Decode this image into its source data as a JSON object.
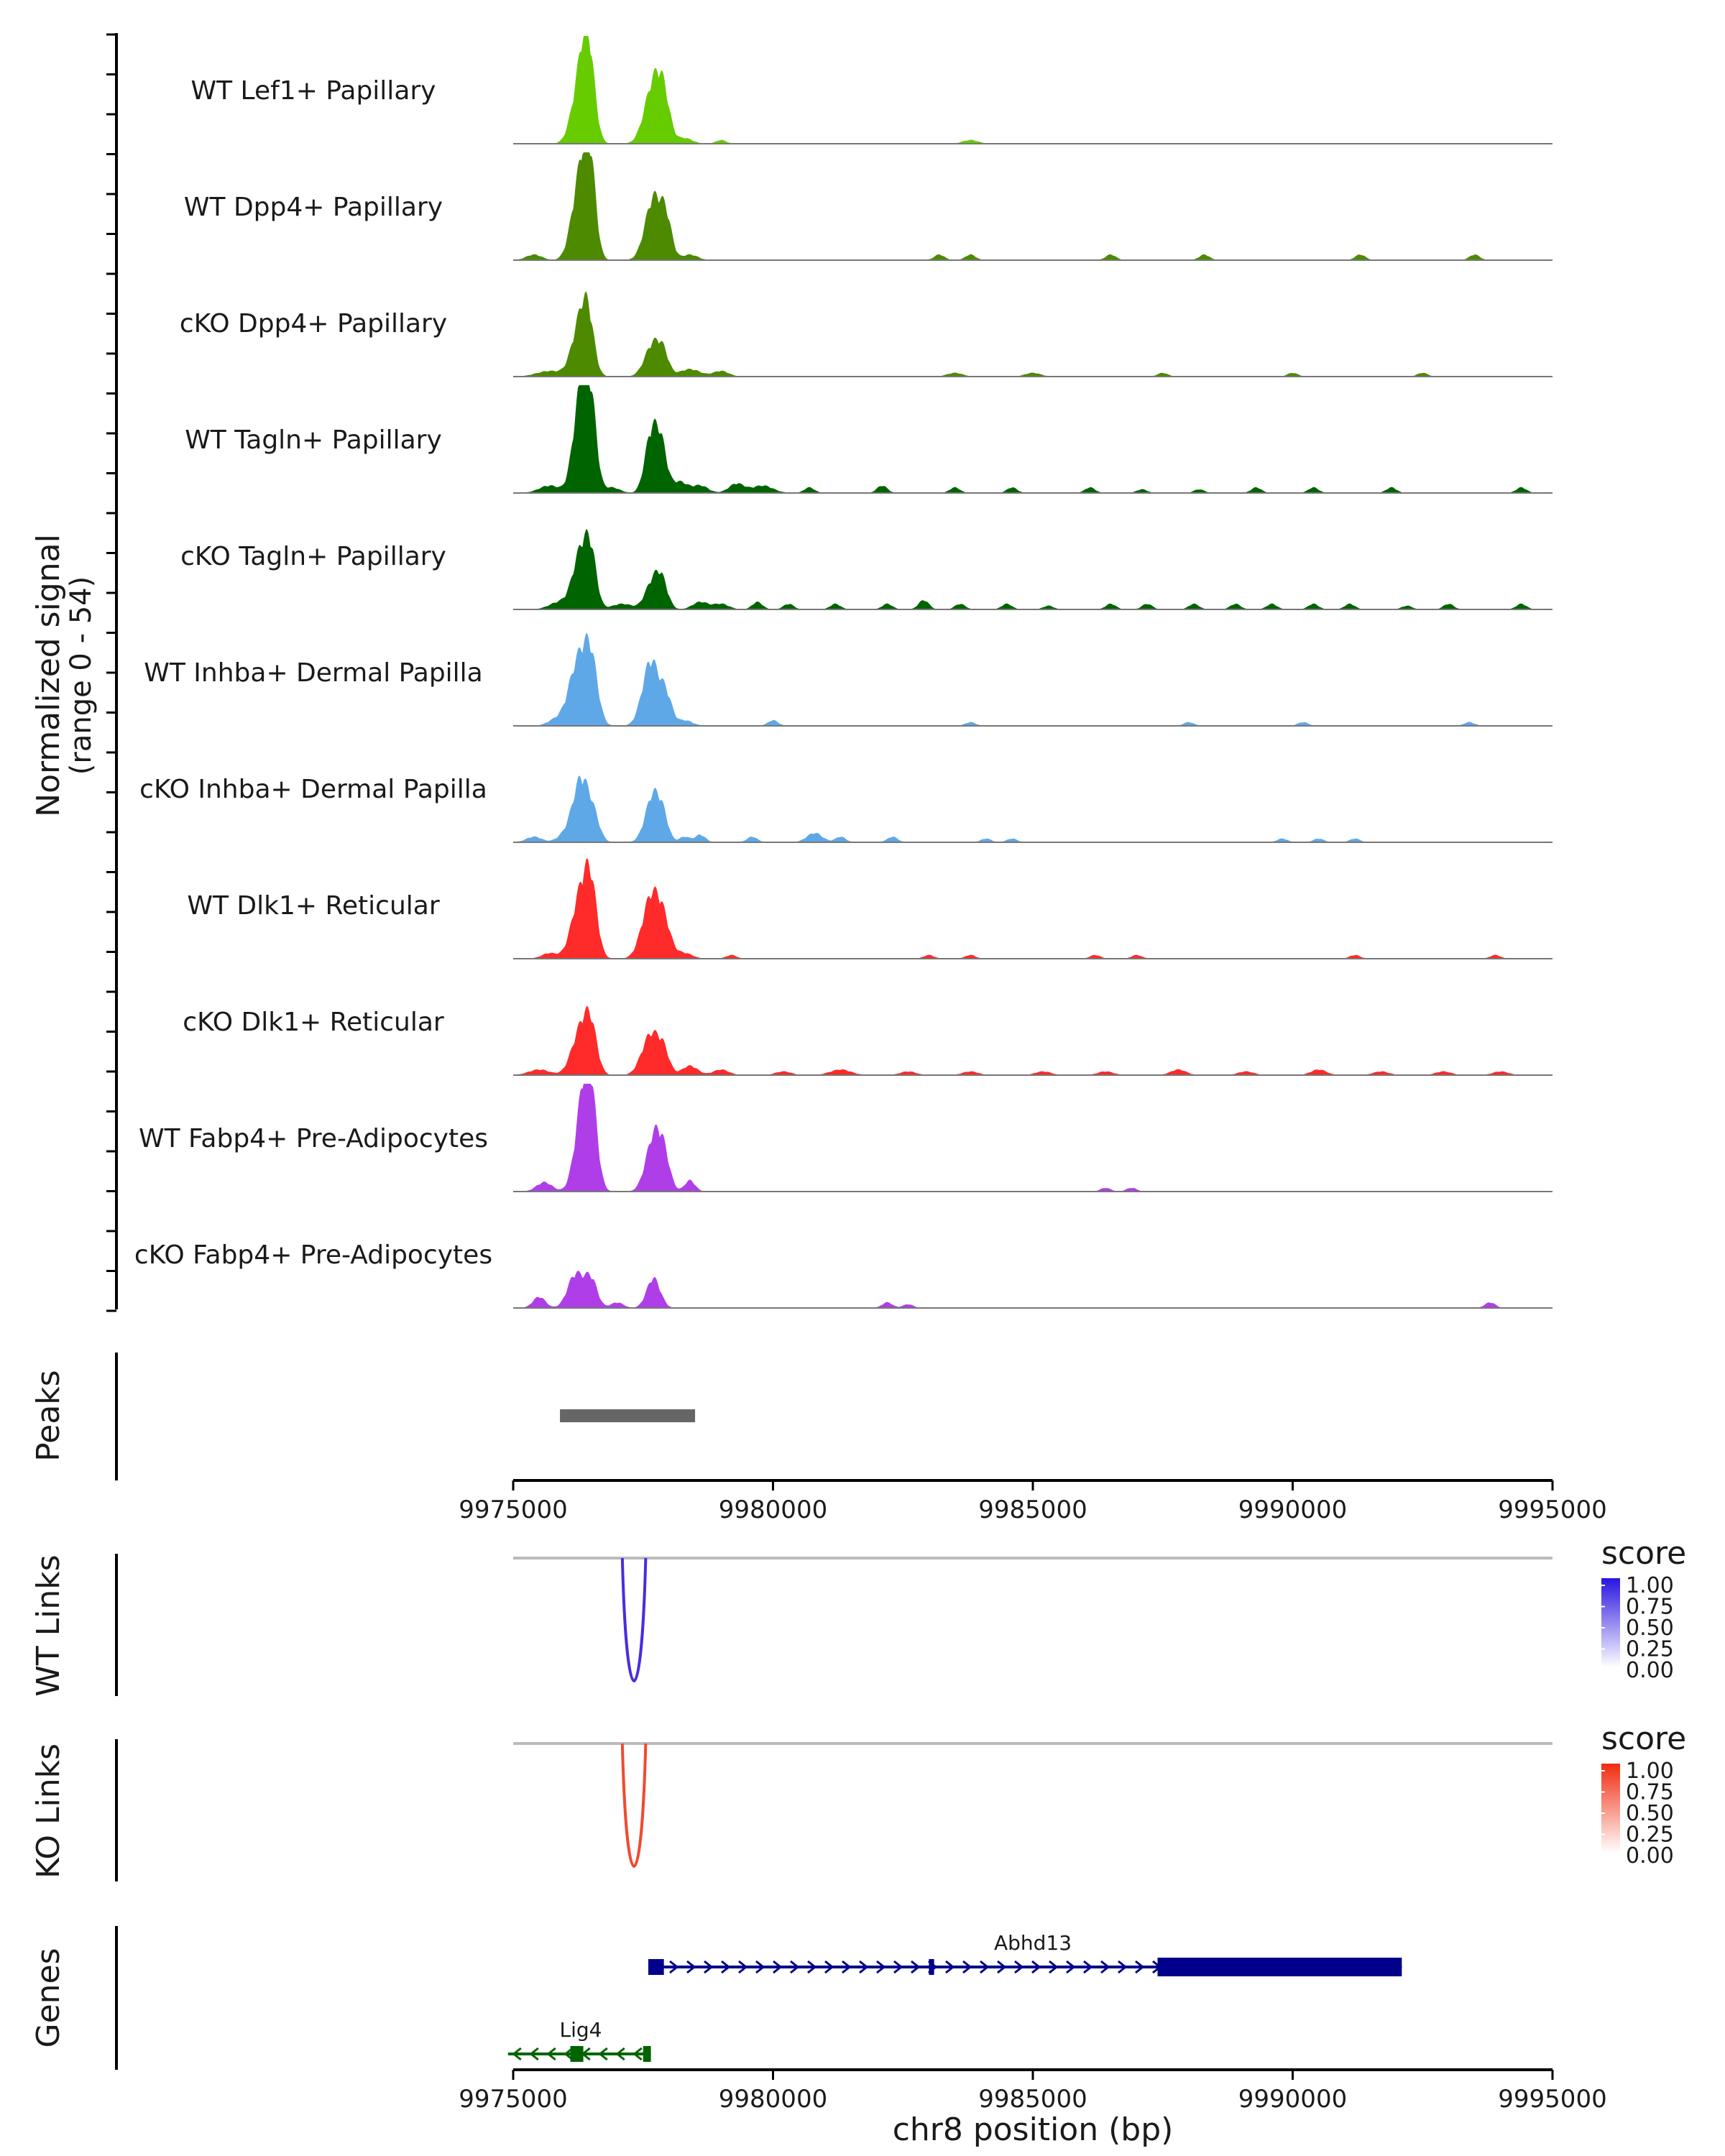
{
  "chart_data": {
    "type": "area",
    "title": "",
    "xlabel": "chr8 position (bp)",
    "xlim": [
      9975000,
      9995000
    ],
    "x_ticks": [
      9975000,
      9980000,
      9985000,
      9990000,
      9995000
    ],
    "x_tick_labels": [
      "9975000",
      "9980000",
      "9985000",
      "9990000",
      "9995000"
    ],
    "coverage": {
      "ylabel": "Normalized signal",
      "ylabel_range": "(range 0 - 54)",
      "ylim": [
        0,
        54
      ],
      "tracks": [
        {
          "name": "WT Lef1+ Papillary",
          "color": "#66cc00",
          "peaks": [
            [
              9976300,
              160,
              35
            ],
            [
              9976450,
              120,
              38
            ],
            [
              9977700,
              170,
              32
            ],
            [
              9977900,
              120,
              18
            ],
            [
              9978300,
              150,
              3
            ],
            [
              9979000,
              100,
              2
            ],
            [
              9983800,
              150,
              2
            ]
          ]
        },
        {
          "name": "WT Dpp4+ Papillary",
          "color": "#4d8a00",
          "peaks": [
            [
              9976300,
              160,
              46
            ],
            [
              9976480,
              110,
              40
            ],
            [
              9977700,
              160,
              33
            ],
            [
              9977950,
              110,
              18
            ],
            [
              9975400,
              150,
              3
            ],
            [
              9978400,
              150,
              3
            ],
            [
              9983200,
              100,
              3
            ],
            [
              9983800,
              100,
              3
            ],
            [
              9986500,
              100,
              3
            ],
            [
              9988300,
              100,
              3
            ],
            [
              9991300,
              100,
              3
            ],
            [
              9993500,
              100,
              3
            ]
          ]
        },
        {
          "name": "cKO Dpp4+ Papillary",
          "color": "#4d8a00",
          "peaks": [
            [
              9976300,
              160,
              30
            ],
            [
              9976450,
              110,
              20
            ],
            [
              9977700,
              160,
              18
            ],
            [
              9977900,
              100,
              8
            ],
            [
              9975700,
              250,
              3
            ],
            [
              9978400,
              200,
              4
            ],
            [
              9979000,
              150,
              3
            ],
            [
              9983500,
              150,
              2
            ],
            [
              9985000,
              150,
              2
            ],
            [
              9987500,
              100,
              2
            ],
            [
              9990000,
              100,
              2
            ],
            [
              9992500,
              100,
              2
            ]
          ]
        },
        {
          "name": "WT Tagln+ Papillary",
          "color": "#006400",
          "peaks": [
            [
              9976300,
              140,
              54
            ],
            [
              9976500,
              110,
              40
            ],
            [
              9977650,
              120,
              30
            ],
            [
              9977850,
              110,
              24
            ],
            [
              9975700,
              200,
              4
            ],
            [
              9976900,
              150,
              3
            ],
            [
              9978200,
              150,
              6
            ],
            [
              9978600,
              150,
              4
            ],
            [
              9979300,
              150,
              5
            ],
            [
              9979800,
              200,
              4
            ],
            [
              9980700,
              100,
              3
            ],
            [
              9982100,
              100,
              4
            ],
            [
              9983500,
              100,
              3
            ],
            [
              9984600,
              100,
              3
            ],
            [
              9986100,
              100,
              3
            ],
            [
              9987100,
              100,
              2
            ],
            [
              9988200,
              100,
              2
            ],
            [
              9989300,
              100,
              3
            ],
            [
              9990400,
              100,
              3
            ],
            [
              9991900,
              100,
              3
            ],
            [
              9994400,
              100,
              3
            ]
          ]
        },
        {
          "name": "cKO Tagln+ Papillary",
          "color": "#006400",
          "peaks": [
            [
              9976300,
              150,
              30
            ],
            [
              9976500,
              110,
              24
            ],
            [
              9977650,
              130,
              12
            ],
            [
              9977850,
              120,
              16
            ],
            [
              9975900,
              200,
              4
            ],
            [
              9977100,
              200,
              3
            ],
            [
              9978600,
              150,
              4
            ],
            [
              9979000,
              150,
              3
            ],
            [
              9979700,
              100,
              4
            ],
            [
              9980300,
              100,
              3
            ],
            [
              9981200,
              100,
              3
            ],
            [
              9982200,
              100,
              3
            ],
            [
              9982900,
              100,
              5
            ],
            [
              9983600,
              100,
              3
            ],
            [
              9984500,
              100,
              3
            ],
            [
              9985300,
              100,
              2
            ],
            [
              9986500,
              100,
              3
            ],
            [
              9987200,
              100,
              3
            ],
            [
              9988100,
              100,
              3
            ],
            [
              9988900,
              100,
              3
            ],
            [
              9989600,
              100,
              3
            ],
            [
              9990400,
              100,
              3
            ],
            [
              9991100,
              100,
              3
            ],
            [
              9992200,
              100,
              2
            ],
            [
              9993000,
              100,
              3
            ],
            [
              9994400,
              100,
              3
            ]
          ]
        },
        {
          "name": "WT Inhba+ Dermal Papilla",
          "color": "#5fa8e8",
          "peaks": [
            [
              9976250,
              180,
              34
            ],
            [
              9976500,
              130,
              30
            ],
            [
              9977650,
              160,
              35
            ],
            [
              9977950,
              110,
              14
            ],
            [
              9975800,
              150,
              3
            ],
            [
              9978300,
              150,
              3
            ],
            [
              9980000,
              100,
              3
            ],
            [
              9983800,
              100,
              2
            ],
            [
              9988000,
              100,
              2
            ],
            [
              9990200,
              100,
              2
            ],
            [
              9993400,
              100,
              2
            ]
          ]
        },
        {
          "name": "cKO Inhba+ Dermal Papilla",
          "color": "#5fa8e8",
          "peaks": [
            [
              9976300,
              150,
              33
            ],
            [
              9976550,
              120,
              12
            ],
            [
              9977700,
              150,
              26
            ],
            [
              9977900,
              100,
              8
            ],
            [
              9975400,
              150,
              3
            ],
            [
              9976000,
              150,
              4
            ],
            [
              9978300,
              100,
              3
            ],
            [
              9978600,
              100,
              4
            ],
            [
              9979600,
              100,
              3
            ],
            [
              9980800,
              150,
              5
            ],
            [
              9981300,
              100,
              3
            ],
            [
              9982300,
              100,
              3
            ],
            [
              9984100,
              100,
              2
            ],
            [
              9984600,
              100,
              2
            ],
            [
              9989800,
              100,
              2
            ],
            [
              9990500,
              100,
              2
            ],
            [
              9991200,
              100,
              2
            ]
          ]
        },
        {
          "name": "WT Dlk1+ Reticular",
          "color": "#ff2a2a",
          "peaks": [
            [
              9976300,
              170,
              34
            ],
            [
              9976500,
              120,
              30
            ],
            [
              9977650,
              170,
              32
            ],
            [
              9977900,
              140,
              16
            ],
            [
              9975700,
              150,
              3
            ],
            [
              9978300,
              150,
              3
            ],
            [
              9979200,
              100,
              2
            ],
            [
              9983000,
              100,
              2
            ],
            [
              9983800,
              100,
              2
            ],
            [
              9986200,
              100,
              2
            ],
            [
              9987000,
              100,
              2
            ],
            [
              9991200,
              100,
              2
            ],
            [
              9993900,
              100,
              2
            ]
          ]
        },
        {
          "name": "cKO Dlk1+ Reticular",
          "color": "#ff2a2a",
          "peaks": [
            [
              9976300,
              170,
              24
            ],
            [
              9976500,
              120,
              20
            ],
            [
              9977650,
              170,
              22
            ],
            [
              9977900,
              110,
              10
            ],
            [
              9975500,
              200,
              3
            ],
            [
              9978400,
              150,
              5
            ],
            [
              9979000,
              150,
              3
            ],
            [
              9980200,
              150,
              2
            ],
            [
              9981300,
              200,
              3
            ],
            [
              9982600,
              150,
              2
            ],
            [
              9983800,
              150,
              2
            ],
            [
              9985200,
              150,
              2
            ],
            [
              9986400,
              150,
              2
            ],
            [
              9987800,
              150,
              3
            ],
            [
              9989100,
              150,
              2
            ],
            [
              9990500,
              150,
              3
            ],
            [
              9991700,
              150,
              2
            ],
            [
              9992900,
              150,
              2
            ],
            [
              9994000,
              150,
              2
            ]
          ]
        },
        {
          "name": "WT Fabp4+ Pre-Adipocytes",
          "color": "#b03ee8",
          "peaks": [
            [
              9976350,
              150,
              48
            ],
            [
              9976500,
              120,
              36
            ],
            [
              9977700,
              150,
              28
            ],
            [
              9977900,
              120,
              16
            ],
            [
              9975600,
              150,
              5
            ],
            [
              9978400,
              100,
              6
            ],
            [
              9986400,
              100,
              2
            ],
            [
              9986900,
              100,
              2
            ]
          ]
        },
        {
          "name": "cKO Fabp4+ Pre-Adipocytes",
          "color": "#b03ee8",
          "peaks": [
            [
              9976200,
              150,
              18
            ],
            [
              9976500,
              120,
              15
            ],
            [
              9977700,
              130,
              16
            ],
            [
              9975500,
              120,
              6
            ],
            [
              9977000,
              120,
              3
            ],
            [
              9982200,
              100,
              3
            ],
            [
              9982600,
              100,
              2
            ],
            [
              9993800,
              100,
              3
            ]
          ]
        }
      ]
    },
    "peaks_track": {
      "label": "Peaks",
      "regions": [
        {
          "start": 9975900,
          "end": 9978500,
          "color": "#666666"
        }
      ]
    },
    "links": [
      {
        "label": "WT Links",
        "legend_title": "score",
        "color": "#4b2be0",
        "legend_low": "#ffffff",
        "legend_high": "#2a14e0",
        "legend_ticks": [
          "1.00",
          "0.75",
          "0.50",
          "0.25",
          "0.00"
        ],
        "arcs": [
          {
            "start": 9977100,
            "end": 9977550,
            "score": 1.0
          }
        ]
      },
      {
        "label": "KO Links",
        "legend_title": "score",
        "color": "#f04a30",
        "legend_low": "#ffffff",
        "legend_high": "#f02c10",
        "legend_ticks": [
          "1.00",
          "0.75",
          "0.50",
          "0.25",
          "0.00"
        ],
        "arcs": [
          {
            "start": 9977100,
            "end": 9977550,
            "score": 1.0
          }
        ]
      }
    ],
    "genes": {
      "label": "Genes",
      "items": [
        {
          "name": "Abhd13",
          "color": "#00008b",
          "strand": "+",
          "start": 9977600,
          "end": 9992100,
          "exons": [
            [
              9977600,
              9977900
            ],
            [
              9983000,
              9983100
            ],
            [
              9987400,
              9992100
            ]
          ]
        },
        {
          "name": "Lig4",
          "color": "#006400",
          "strand": "-",
          "start": 9974900,
          "end": 9977650,
          "exons": [
            [
              9976100,
              9976350
            ],
            [
              9977500,
              9977650
            ]
          ]
        }
      ]
    }
  }
}
